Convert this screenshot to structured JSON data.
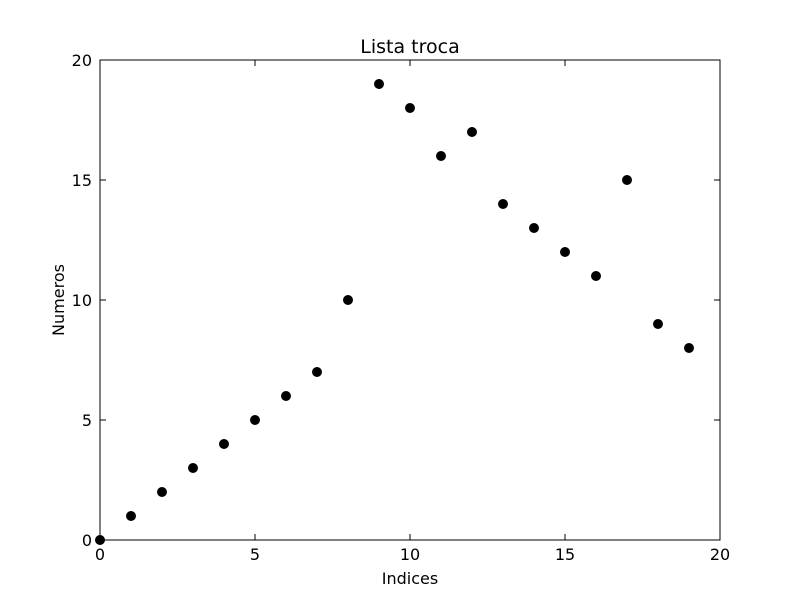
{
  "chart_data": {
    "type": "scatter",
    "title": "Lista troca",
    "xlabel": "Indices",
    "ylabel": "Numeros",
    "xlim": [
      0,
      20
    ],
    "ylim": [
      0,
      20
    ],
    "xticks": [
      0,
      5,
      10,
      15,
      20
    ],
    "yticks": [
      0,
      5,
      10,
      15,
      20
    ],
    "grid": false,
    "marker_color": "#000000",
    "series": [
      {
        "x": [
          0,
          1,
          2,
          3,
          4,
          5,
          6,
          7,
          8,
          9,
          10,
          11,
          12,
          13,
          14,
          15,
          16,
          17,
          18,
          19
        ],
        "y": [
          0,
          1,
          2,
          3,
          4,
          5,
          6,
          7,
          10,
          19,
          18,
          16,
          17,
          14,
          13,
          12,
          11,
          15,
          9,
          8
        ]
      }
    ]
  }
}
